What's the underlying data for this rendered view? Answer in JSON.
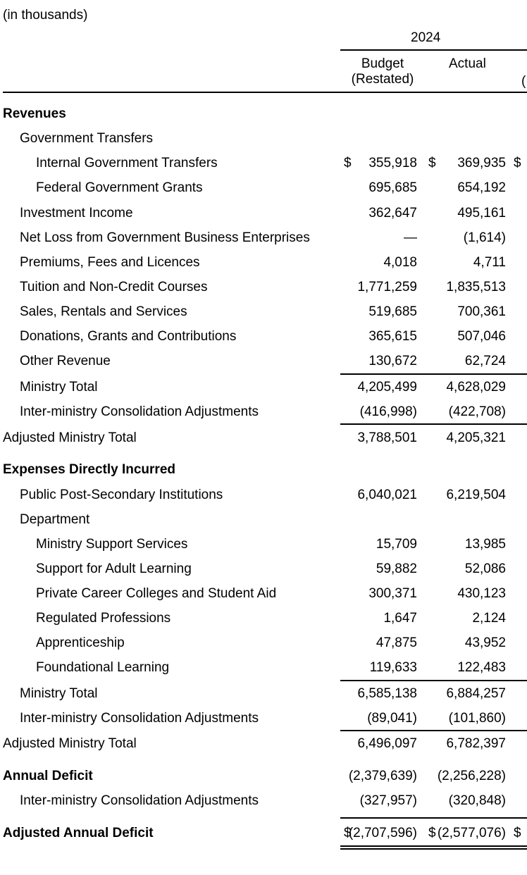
{
  "units_note": "(in thousands)",
  "header": {
    "year": "2024",
    "col_budget_line1": "Budget",
    "col_budget_line2": "(Restated)",
    "col_actual": "Actual",
    "col_next_partial": "("
  },
  "currency_symbol": "$",
  "rows": [
    {
      "label": "Revenues",
      "indent": 0,
      "bold": true,
      "budget": "",
      "actual": "",
      "dollar": false
    },
    {
      "label": "Government Transfers",
      "indent": 1,
      "bold": false,
      "budget": "",
      "actual": "",
      "dollar": false
    },
    {
      "label": "Internal Government Transfers",
      "indent": 2,
      "bold": false,
      "budget": "355,918",
      "actual": "369,935",
      "dollar": true
    },
    {
      "label": "Federal Government Grants",
      "indent": 2,
      "bold": false,
      "budget": "695,685",
      "actual": "654,192",
      "dollar": false
    },
    {
      "label": "Investment Income",
      "indent": 1,
      "bold": false,
      "budget": "362,647",
      "actual": "495,161",
      "dollar": false
    },
    {
      "label": "Net Loss from Government Business Enterprises",
      "indent": 1,
      "bold": false,
      "budget": "—",
      "actual": "(1,614)",
      "dollar": false
    },
    {
      "label": "Premiums, Fees and Licences",
      "indent": 1,
      "bold": false,
      "budget": "4,018",
      "actual": "4,711",
      "dollar": false
    },
    {
      "label": "Tuition and Non-Credit Courses",
      "indent": 1,
      "bold": false,
      "budget": "1,771,259",
      "actual": "1,835,513",
      "dollar": false
    },
    {
      "label": "Sales, Rentals and Services",
      "indent": 1,
      "bold": false,
      "budget": "519,685",
      "actual": "700,361",
      "dollar": false
    },
    {
      "label": "Donations, Grants and Contributions",
      "indent": 1,
      "bold": false,
      "budget": "365,615",
      "actual": "507,046",
      "dollar": false
    },
    {
      "label": "Other Revenue",
      "indent": 1,
      "bold": false,
      "budget": "130,672",
      "actual": "62,724",
      "dollar": false
    },
    {
      "label": "Ministry Total",
      "indent": 1,
      "bold": false,
      "budget": "4,205,499",
      "actual": "4,628,029",
      "dollar": false
    },
    {
      "label": "Inter-ministry Consolidation Adjustments",
      "indent": 1,
      "bold": false,
      "budget": "(416,998)",
      "actual": "(422,708)",
      "dollar": false
    },
    {
      "label": "Adjusted Ministry Total",
      "indent": 0,
      "bold": false,
      "budget": "3,788,501",
      "actual": "4,205,321",
      "dollar": false
    },
    {
      "label": "Expenses Directly Incurred",
      "indent": 0,
      "bold": true,
      "budget": "",
      "actual": "",
      "dollar": false
    },
    {
      "label": "Public Post-Secondary Institutions",
      "indent": 1,
      "bold": false,
      "budget": "6,040,021",
      "actual": "6,219,504",
      "dollar": false
    },
    {
      "label": "Department",
      "indent": 1,
      "bold": false,
      "budget": "",
      "actual": "",
      "dollar": false
    },
    {
      "label": "Ministry Support Services",
      "indent": 2,
      "bold": false,
      "budget": "15,709",
      "actual": "13,985",
      "dollar": false
    },
    {
      "label": "Support for Adult Learning",
      "indent": 2,
      "bold": false,
      "budget": "59,882",
      "actual": "52,086",
      "dollar": false
    },
    {
      "label": "Private Career Colleges and Student Aid",
      "indent": 2,
      "bold": false,
      "budget": "300,371",
      "actual": "430,123",
      "dollar": false
    },
    {
      "label": "Regulated Professions",
      "indent": 2,
      "bold": false,
      "budget": "1,647",
      "actual": "2,124",
      "dollar": false
    },
    {
      "label": "Apprenticeship",
      "indent": 2,
      "bold": false,
      "budget": "47,875",
      "actual": "43,952",
      "dollar": false
    },
    {
      "label": "Foundational Learning",
      "indent": 2,
      "bold": false,
      "budget": "119,633",
      "actual": "122,483",
      "dollar": false
    },
    {
      "label": "Ministry Total",
      "indent": 1,
      "bold": false,
      "budget": "6,585,138",
      "actual": "6,884,257",
      "dollar": false
    },
    {
      "label": "Inter-ministry Consolidation Adjustments",
      "indent": 1,
      "bold": false,
      "budget": "(89,041)",
      "actual": "(101,860)",
      "dollar": false
    },
    {
      "label": "Adjusted Ministry Total",
      "indent": 0,
      "bold": false,
      "budget": "6,496,097",
      "actual": "6,782,397",
      "dollar": false
    },
    {
      "label": "Annual Deficit",
      "indent": 0,
      "bold": true,
      "budget": "(2,379,639)",
      "actual": "(2,256,228)",
      "dollar": false
    },
    {
      "label": "Inter-ministry Consolidation Adjustments",
      "indent": 1,
      "bold": false,
      "budget": "(327,957)",
      "actual": "(320,848)",
      "dollar": false
    },
    {
      "label": "Adjusted Annual Deficit",
      "indent": 0,
      "bold": true,
      "budget": "(2,707,596)",
      "actual": "(2,577,076)",
      "dollar": true
    }
  ]
}
